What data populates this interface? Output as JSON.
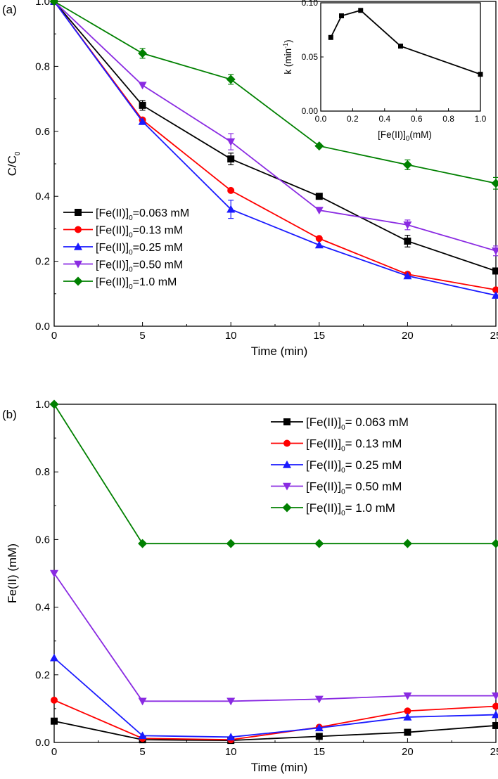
{
  "colors": {
    "0.063": "#000000",
    "0.13": "#ff0000",
    "0.25": "#1a1aff",
    "0.50": "#8a2be2",
    "1.0": "#008000"
  },
  "panels": {
    "a": {
      "tag": "(a)"
    },
    "b": {
      "tag": "(b)"
    }
  },
  "chart_data": [
    {
      "id": "panel-a",
      "type": "line",
      "panel_label": "(a)",
      "xlabel": "Time (min)",
      "ylabel": {
        "main": "C/C",
        "sub": "0"
      },
      "xlim": [
        0,
        25
      ],
      "ylim": [
        0,
        1.0
      ],
      "xticks": [
        "0",
        "5",
        "10",
        "15",
        "20",
        "25"
      ],
      "yticks": [
        "0.0",
        "0.2",
        "0.4",
        "0.6",
        "0.8",
        "1.0"
      ],
      "x": [
        0,
        5,
        10,
        15,
        20,
        25
      ],
      "legend_position": "bottom-left",
      "series": [
        {
          "key": "0.063",
          "prefix": "[Fe(II)]",
          "sub": "0",
          "suffix": "=0.063 mM",
          "marker": "square",
          "values": [
            1.0,
            0.68,
            0.515,
            0.4,
            0.262,
            0.17
          ],
          "errors": [
            0,
            0.015,
            0.018,
            0,
            0.018,
            0
          ]
        },
        {
          "key": "0.13",
          "prefix": "[Fe(II)]",
          "sub": "0",
          "suffix": "=0.13 mM",
          "marker": "circle",
          "values": [
            1.0,
            0.635,
            0.418,
            0.27,
            0.16,
            0.112
          ],
          "errors": [
            0,
            0,
            0,
            0,
            0,
            0
          ]
        },
        {
          "key": "0.25",
          "prefix": "[Fe(II)]",
          "sub": "0",
          "suffix": "=0.25 mM",
          "marker": "triangle-up",
          "values": [
            1.0,
            0.63,
            0.36,
            0.25,
            0.155,
            0.095
          ],
          "errors": [
            0,
            0,
            0.028,
            0,
            0,
            0
          ]
        },
        {
          "key": "0.50",
          "prefix": "[Fe(II)]",
          "sub": "0",
          "suffix": "=0.50 mM",
          "marker": "triangle-down",
          "values": [
            1.0,
            0.742,
            0.568,
            0.357,
            0.312,
            0.232
          ],
          "errors": [
            0,
            0,
            0.025,
            0,
            0.015,
            0.015
          ]
        },
        {
          "key": "1.0",
          "prefix": "[Fe(II)]",
          "sub": "0",
          "suffix": "=1.0 mM",
          "marker": "diamond",
          "values": [
            1.0,
            0.84,
            0.76,
            0.555,
            0.497,
            0.44
          ],
          "errors": [
            0,
            0.015,
            0.015,
            0,
            0.015,
            0.018
          ]
        }
      ],
      "inset": {
        "type": "line",
        "xlabel": {
          "main": "[Fe(II)]",
          "sub": "0",
          "suffix": "(mM)"
        },
        "ylabel": {
          "main": "k (min",
          "sup": "-1",
          "suffix": ")"
        },
        "xlim": [
          0,
          1.0
        ],
        "ylim": [
          0,
          0.1
        ],
        "xticks": [
          "0.0",
          "0.2",
          "0.4",
          "0.6",
          "0.8",
          "1.0"
        ],
        "yticks": [
          "0.00",
          "0.05",
          "0.10"
        ],
        "x": [
          0.063,
          0.13,
          0.25,
          0.5,
          1.0
        ],
        "values": [
          0.068,
          0.088,
          0.093,
          0.06,
          0.034
        ]
      }
    },
    {
      "id": "panel-b",
      "type": "line",
      "panel_label": "(b)",
      "xlabel": "Time (min)",
      "ylabel": {
        "main": "Fe(II) (mM)"
      },
      "xlim": [
        0,
        25
      ],
      "ylim": [
        0,
        1.0
      ],
      "xticks": [
        "0",
        "5",
        "10",
        "15",
        "20",
        "25"
      ],
      "yticks": [
        "0.0",
        "0.2",
        "0.4",
        "0.6",
        "0.8",
        "1.0"
      ],
      "x": [
        0,
        5,
        10,
        15,
        20,
        25
      ],
      "legend_position": "top-right",
      "series": [
        {
          "key": "0.063",
          "prefix": "[Fe(II)]",
          "sub": "0",
          "suffix": "= 0.063 mM",
          "marker": "square",
          "values": [
            0.063,
            0.008,
            0.006,
            0.018,
            0.03,
            0.05
          ]
        },
        {
          "key": "0.13",
          "prefix": "[Fe(II)]",
          "sub": "0",
          "suffix": "= 0.13 mM",
          "marker": "circle",
          "values": [
            0.125,
            0.012,
            0.008,
            0.045,
            0.093,
            0.107
          ]
        },
        {
          "key": "0.25",
          "prefix": "[Fe(II)]",
          "sub": "0",
          "suffix": "= 0.25 mM",
          "marker": "triangle-up",
          "values": [
            0.25,
            0.02,
            0.016,
            0.043,
            0.075,
            0.082
          ]
        },
        {
          "key": "0.50",
          "prefix": "[Fe(II)]",
          "sub": "0",
          "suffix": "= 0.50 mM",
          "marker": "triangle-down",
          "values": [
            0.5,
            0.122,
            0.122,
            0.128,
            0.138,
            0.138
          ]
        },
        {
          "key": "1.0",
          "prefix": "[Fe(II)]",
          "sub": "0",
          "suffix": "= 1.0 mM",
          "marker": "diamond",
          "values": [
            1.0,
            0.588,
            0.588,
            0.588,
            0.588,
            0.588
          ]
        }
      ]
    }
  ]
}
